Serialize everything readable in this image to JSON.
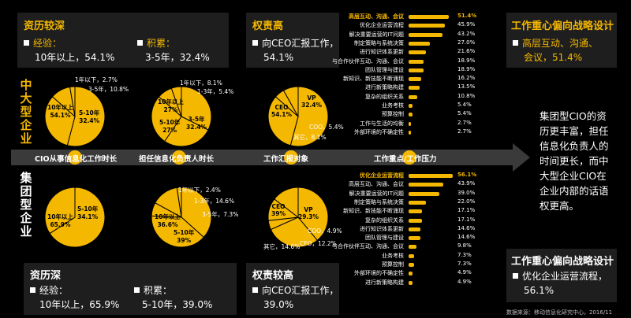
{
  "top_left": {
    "title": "资历较深",
    "item1_label": "经验：",
    "item1_value": "10年以上，54.1%",
    "item2_label": "积累：",
    "item2_value": "3-5年，32.4%"
  },
  "top_mid": {
    "title": "权责高",
    "line1": "向CEO汇报工作，",
    "line2": "54.1%"
  },
  "top_right": {
    "title": "工作重心偏向战略设计",
    "line1": "高层互动、沟通、",
    "line2": "会议，51.4%"
  },
  "side_top": [
    "中",
    "大",
    "型",
    "企",
    "业"
  ],
  "side_bottom": [
    "集",
    "团",
    "型",
    "企",
    "业"
  ],
  "band_labels": [
    "CIO从事信息化工作时长",
    "担任信息化负责人时长",
    "工作汇报对象",
    "工作重点/工作压力"
  ],
  "right_note": "集团型CIO的资历更丰富，担任信息化负责人的时间更长，而中大型企业CIO在企业内部的话语权更高。",
  "bottom_left": {
    "title": "资历深",
    "item1_label": "经验：",
    "item1_value": "10年以上，65.9%",
    "item2_label": "积累：",
    "item2_value": "5-10年，39.0%"
  },
  "bottom_mid": {
    "title": "权责较高",
    "line1": "向CEO汇报工作，",
    "line2": "39.0%"
  },
  "bottom_right": {
    "title": "工作重心偏向战略设计",
    "line1": "优化企业运营流程，",
    "line2": "56.1%"
  },
  "source": "数据来源：移动信息化研究中心，2016/11",
  "colors": {
    "accent": "#f5b800",
    "panel": "#1e1e1e",
    "band": "#3a3a3a"
  },
  "chart_data": [
    {
      "type": "pie",
      "group": "中大型企业",
      "slices": [
        {
          "label": "10年以上",
          "value": 54.1
        },
        {
          "label": "5-10年",
          "value": 32.4
        },
        {
          "label": "3-5年",
          "value": 10.8
        },
        {
          "label": "1年以下",
          "value": 2.7
        }
      ]
    },
    {
      "type": "pie",
      "group": "中大型企业",
      "slices": [
        {
          "label": "3-5年",
          "value": 32.4
        },
        {
          "label": "5-10年",
          "value": 27.0
        },
        {
          "label": "10年以上",
          "value": 27.0
        },
        {
          "label": "1年以下",
          "value": 8.1
        },
        {
          "label": "1-3年",
          "value": 5.4
        }
      ]
    },
    {
      "type": "pie",
      "group": "中大型企业",
      "slices": [
        {
          "label": "CEO",
          "value": 54.1
        },
        {
          "label": "VP",
          "value": 32.4
        },
        {
          "label": "COO",
          "value": 5.4
        },
        {
          "label": "其它",
          "value": 8.1
        }
      ]
    },
    {
      "type": "bar",
      "group": "中大型企业",
      "categories": [
        "高层互动、沟通、会议",
        "优化企业运营流程",
        "解决重要运营的IT问题",
        "制定策略与系统决策",
        "进行知识体系更新",
        "与合作伙伴互动、沟通、会议",
        "团队管理与建设",
        "新知识、新技能不断涌现",
        "进行新策略构建",
        "复杂的组织关系",
        "业务考核",
        "预算控制",
        "工作与生活的均衡",
        "外部环境的不确定性"
      ],
      "values": [
        51.4,
        45.9,
        43.2,
        27.0,
        21.6,
        18.9,
        18.9,
        16.2,
        13.5,
        10.8,
        5.4,
        5.4,
        2.7,
        2.7
      ]
    },
    {
      "type": "pie",
      "group": "集团型企业",
      "slices": [
        {
          "label": "10年以上",
          "value": 65.9
        },
        {
          "label": "5-10年",
          "value": 34.1
        }
      ]
    },
    {
      "type": "pie",
      "group": "集团型企业",
      "slices": [
        {
          "label": "10年以上",
          "value": 36.6
        },
        {
          "label": "5-10年",
          "value": 39.0
        },
        {
          "label": "3-5年",
          "value": 7.3
        },
        {
          "label": "1-3年",
          "value": 14.6
        },
        {
          "label": "1年以下",
          "value": 2.4
        }
      ]
    },
    {
      "type": "pie",
      "group": "集团型企业",
      "slices": [
        {
          "label": "CEO",
          "value": 39.0
        },
        {
          "label": "VP",
          "value": 29.3
        },
        {
          "label": "COO",
          "value": 4.9
        },
        {
          "label": "CFO",
          "value": 12.2
        },
        {
          "label": "其它",
          "value": 14.6
        }
      ]
    },
    {
      "type": "bar",
      "group": "集团型企业",
      "categories": [
        "优化企业运营流程",
        "高层互动、沟通、会议",
        "解决重要运营的IT问题",
        "制定策略与系统决策",
        "新知识、新技能不断涌现",
        "复杂的组织关系",
        "进行知识体系更新",
        "团队管理与建设",
        "与合作伙伴互动、沟通、会议",
        "业务考核",
        "预算控制",
        "外部环境的不确定性",
        "进行新策略构建"
      ],
      "values": [
        56.1,
        43.9,
        39.0,
        22.0,
        17.1,
        17.1,
        14.6,
        14.6,
        9.8,
        7.3,
        7.3,
        4.9,
        4.9
      ]
    }
  ]
}
